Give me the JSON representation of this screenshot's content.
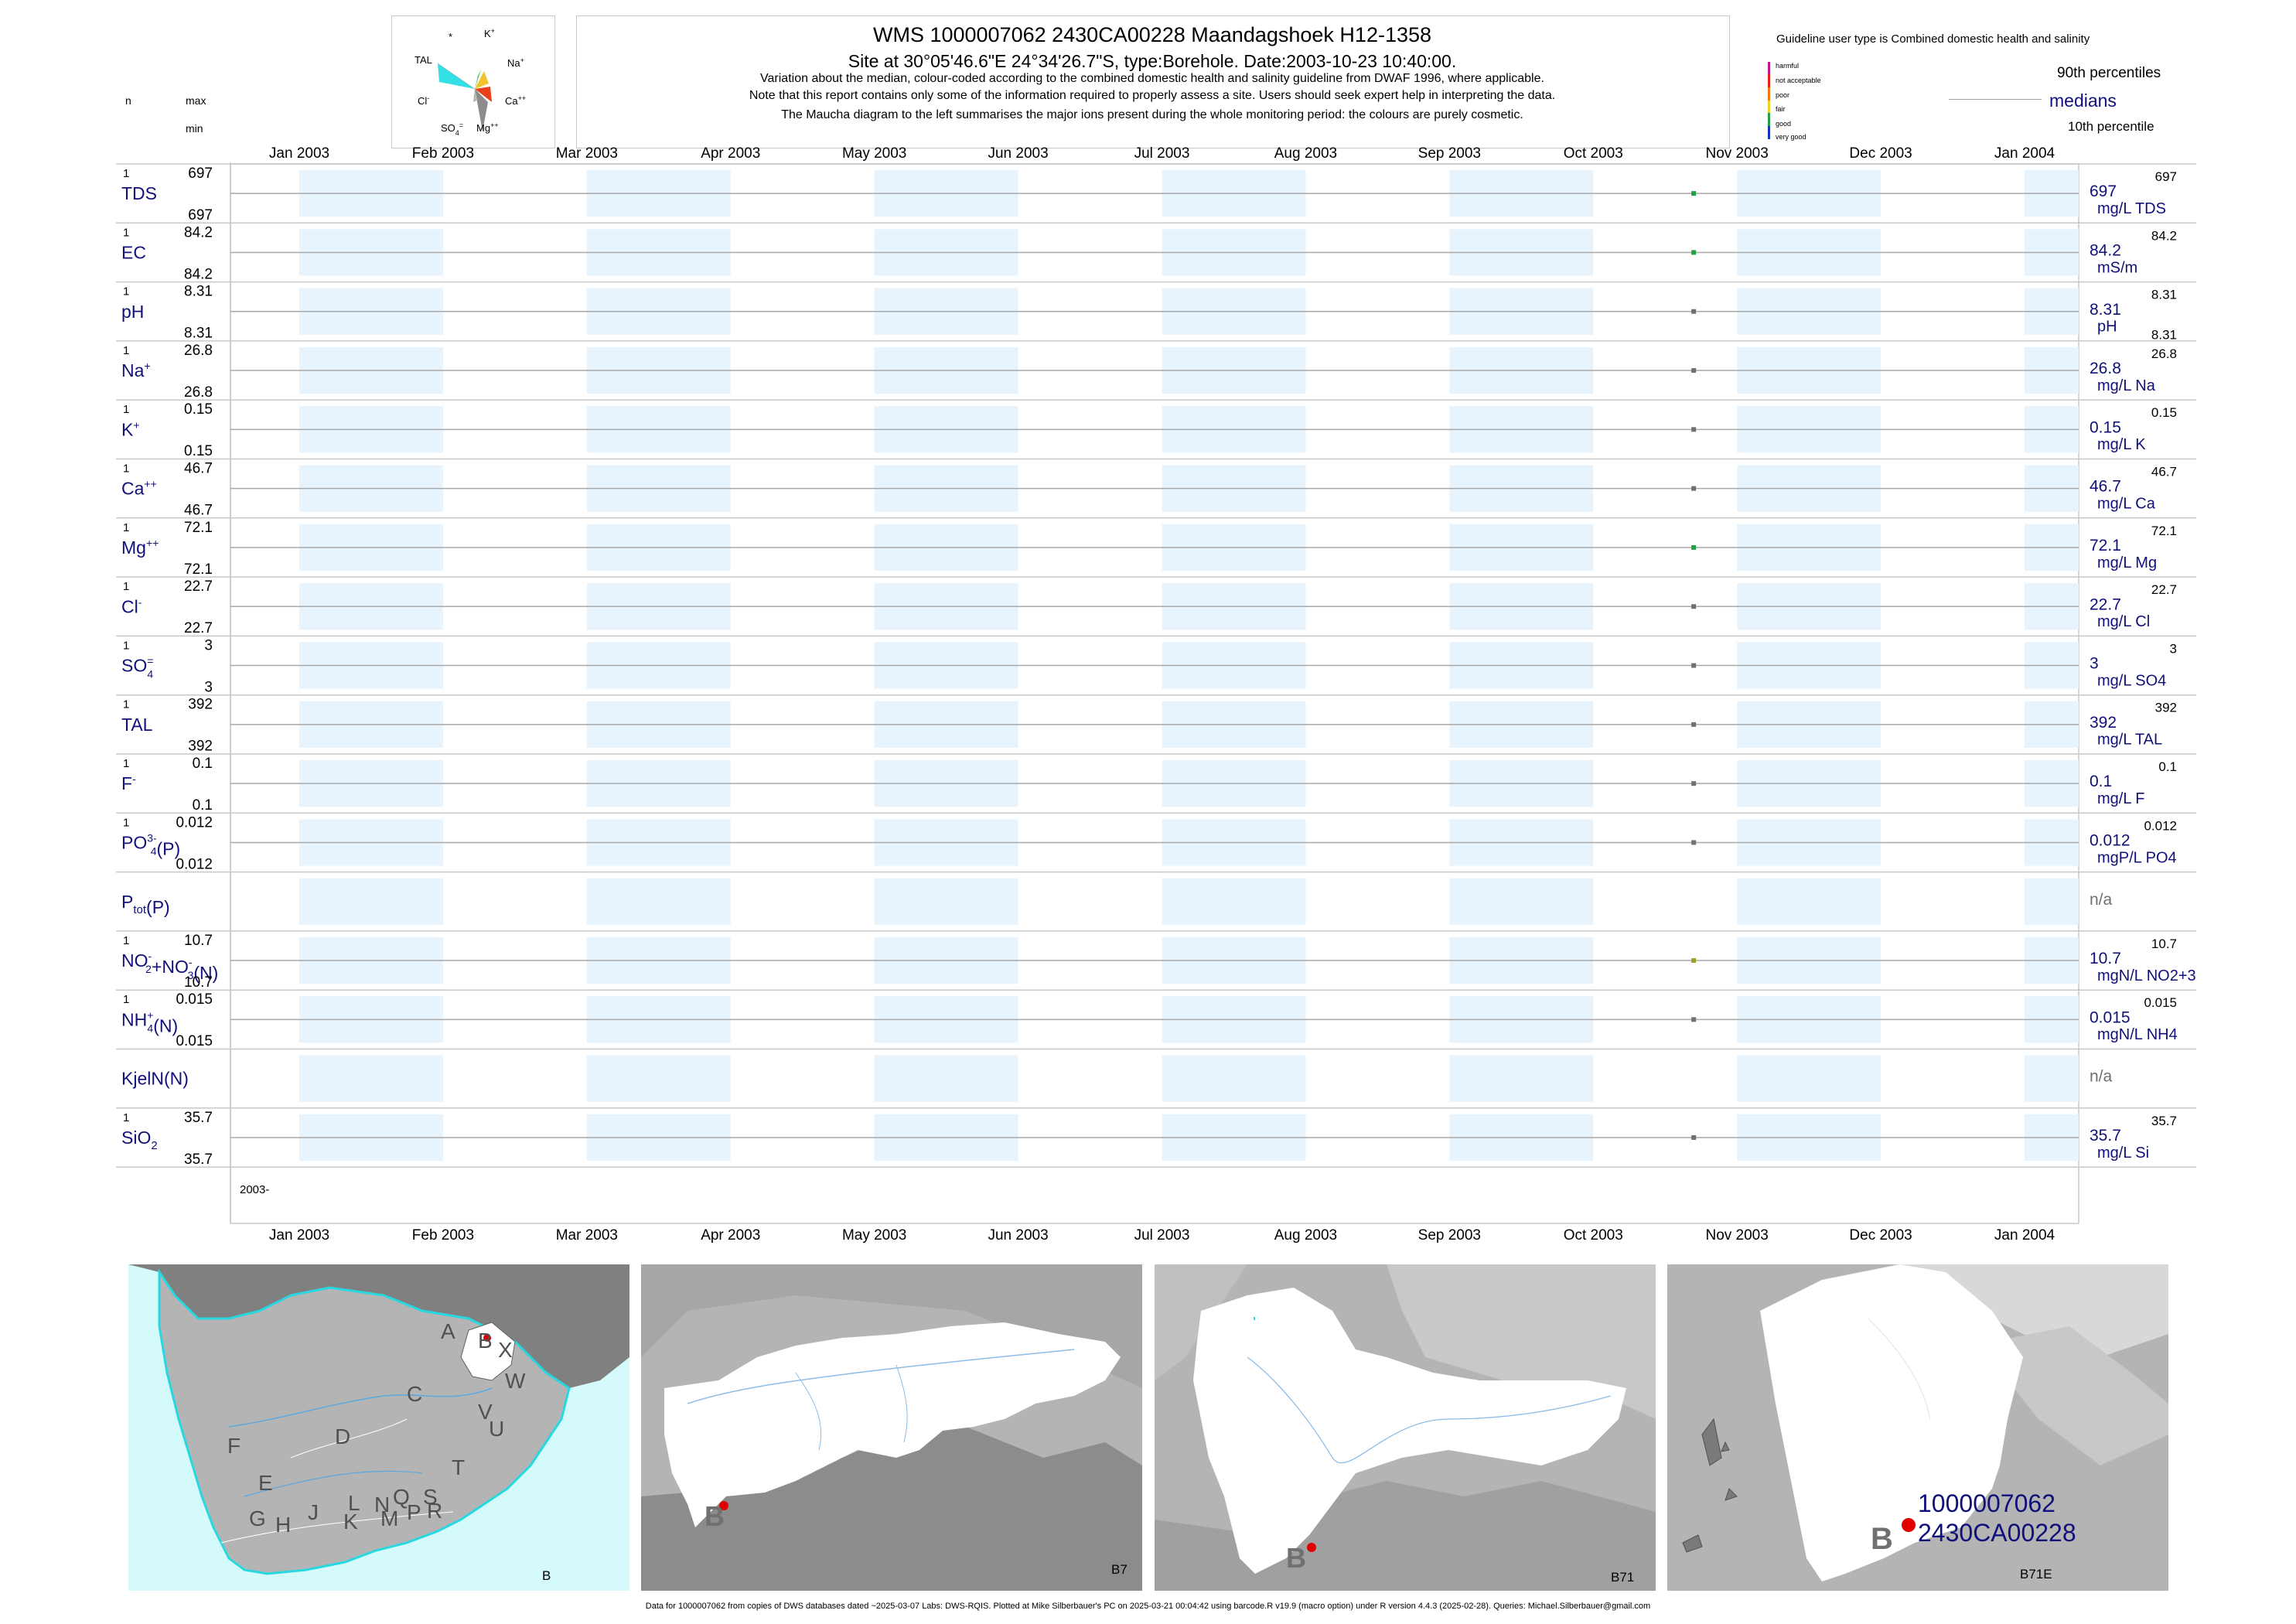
{
  "header": {
    "title": "WMS 1000007062 2430CA00228 Maandagshoek H12-1358",
    "subtitle": "Site at 30°05'46.6\"E 24°34'26.7\"S, type:Borehole. Date:2003-10-23 10:40:00.",
    "note1": "Variation about the median,  colour-coded according to the combined domestic health and salinity guideline from DWAF 1996, where applicable.",
    "note2": "Note that this report contains only some of the information required to properly assess a site. Users should seek expert help in interpreting the data.",
    "note3": "The Maucha diagram to the left summarises the major ions present during the whole monitoring period: the colours are purely cosmetic."
  },
  "maucha": {
    "labels": [
      "*",
      "K+",
      "Na+",
      "Ca++",
      "Mg++",
      "SO4=",
      "Cl-",
      "TAL"
    ],
    "colors": {
      "tal": "#33e0e6",
      "na": "#f2c230",
      "ca": "#e8401c",
      "mg": "#8c8c8c",
      "k": "#40c040",
      "cl": "#ffffff",
      "so4": "#b0b0b0"
    }
  },
  "left_header": {
    "n": "n",
    "max": "max",
    "min": "min"
  },
  "legend": {
    "guideline_title": "Guideline user type is Combined domestic health and salinity",
    "classes": [
      {
        "label": "harmful",
        "color": "#c0188c"
      },
      {
        "label": "not acceptable",
        "color": "#e8201c"
      },
      {
        "label": "poor",
        "color": "#f07818"
      },
      {
        "label": "fair",
        "color": "#f0d020"
      },
      {
        "label": "good",
        "color": "#20a040"
      },
      {
        "label": "very good",
        "color": "#1830c0"
      }
    ],
    "p90": "90th percentiles",
    "medians": "medians",
    "p10": "10th percentile"
  },
  "months": [
    "Jan 2003",
    "Feb 2003",
    "Mar 2003",
    "Apr 2003",
    "May 2003",
    "Jun 2003",
    "Jul 2003",
    "Aug 2003",
    "Sep 2003",
    "Oct 2003",
    "Nov 2003",
    "Dec 2003",
    "Jan 2004"
  ],
  "year_label": "2003-",
  "chart_data": {
    "type": "scatter",
    "title": "WMS 1000007062 2430CA00228 Maandagshoek H12-1358",
    "x_range": [
      "2003-01-01",
      "2004-01-01"
    ],
    "sample_date": "2003-10-23",
    "series": [
      {
        "label": "TDS",
        "n": "1",
        "max": "697",
        "min": "697",
        "median": "697",
        "p90": "697",
        "p10": "",
        "unit": "mg/L TDS",
        "color": "#20a040",
        "value": 697
      },
      {
        "label": "EC",
        "n": "1",
        "max": "84.2",
        "min": "84.2",
        "median": "84.2",
        "p90": "84.2",
        "p10": "",
        "unit": "mS/m",
        "color": "#20a040",
        "value": 84.2
      },
      {
        "label": "pH",
        "n": "1",
        "max": "8.31",
        "min": "8.31",
        "median": "8.31",
        "p90": "8.31",
        "p10": "8.31",
        "unit": "pH",
        "color": "#707070",
        "value": 8.31
      },
      {
        "label": "Na",
        "sup": "+",
        "n": "1",
        "max": "26.8",
        "min": "26.8",
        "median": "26.8",
        "p90": "26.8",
        "p10": "",
        "unit": "mg/L Na",
        "color": "#707070",
        "value": 26.8
      },
      {
        "label": "K",
        "sup": "+",
        "n": "1",
        "max": "0.15",
        "min": "0.15",
        "median": "0.15",
        "p90": "0.15",
        "p10": "",
        "unit": "mg/L K",
        "color": "#707070",
        "value": 0.15
      },
      {
        "label": "Ca",
        "sup": "++",
        "n": "1",
        "max": "46.7",
        "min": "46.7",
        "median": "46.7",
        "p90": "46.7",
        "p10": "",
        "unit": "mg/L Ca",
        "color": "#707070",
        "value": 46.7
      },
      {
        "label": "Mg",
        "sup": "++",
        "n": "1",
        "max": "72.1",
        "min": "72.1",
        "median": "72.1",
        "p90": "72.1",
        "p10": "",
        "unit": "mg/L Mg",
        "color": "#20a040",
        "value": 72.1
      },
      {
        "label": "Cl",
        "sup": "-",
        "n": "1",
        "max": "22.7",
        "min": "22.7",
        "median": "22.7",
        "p90": "22.7",
        "p10": "",
        "unit": "mg/L Cl",
        "color": "#707070",
        "value": 22.7
      },
      {
        "label": "SO",
        "sup": "=",
        "sub": "4",
        "n": "1",
        "max": "3",
        "min": "3",
        "median": "3",
        "p90": "3",
        "p10": "",
        "unit": "mg/L SO4",
        "color": "#707070",
        "value": 3
      },
      {
        "label": "TAL",
        "n": "1",
        "max": "392",
        "min": "392",
        "median": "392",
        "p90": "392",
        "p10": "",
        "unit": "mg/L TAL",
        "color": "#707070",
        "value": 392
      },
      {
        "label": "F",
        "sup": "-",
        "n": "1",
        "max": "0.1",
        "min": "0.1",
        "median": "0.1",
        "p90": "0.1",
        "p10": "",
        "unit": "mg/L F",
        "color": "#707070",
        "value": 0.1
      },
      {
        "label": "PO",
        "sup": "3-",
        "sub": "4",
        "suffix": "(P)",
        "n": "1",
        "max": "0.012",
        "min": "0.012",
        "median": "0.012",
        "p90": "0.012",
        "p10": "",
        "unit": "mgP/L PO4",
        "color": "#707070",
        "value": 0.012
      },
      {
        "label": "P",
        "sub": "tot",
        "suffix": "(P)",
        "n": "",
        "max": "",
        "min": "",
        "median": "n/a",
        "p90": "",
        "p10": "",
        "unit": "",
        "color": "",
        "value": null
      },
      {
        "label": "NO",
        "sup": "-",
        "sub": "2",
        "suffix": "+NO",
        "sup2": "-",
        "sub2": "3",
        "suffix2": "(N)",
        "n": "1",
        "max": "10.7",
        "min": "10.7",
        "median": "10.7",
        "p90": "10.7",
        "p10": "",
        "unit": "mgN/L NO2+3",
        "color": "#a0a020",
        "value": 10.7
      },
      {
        "label": "NH",
        "sup": "+",
        "sub": "4",
        "suffix": "(N)",
        "n": "1",
        "max": "0.015",
        "min": "0.015",
        "median": "0.015",
        "p90": "0.015",
        "p10": "",
        "unit": "mgN/L NH4",
        "color": "#707070",
        "value": 0.015
      },
      {
        "label": "KjelN(N)",
        "n": "",
        "max": "",
        "min": "",
        "median": "n/a",
        "p90": "",
        "p10": "",
        "unit": "",
        "color": "",
        "value": null
      },
      {
        "label": "SiO",
        "sub": "2",
        "n": "1",
        "max": "35.7",
        "min": "35.7",
        "median": "35.7",
        "p90": "35.7",
        "p10": "",
        "unit": "mg/L Si",
        "color": "#707070",
        "value": 35.7
      }
    ]
  },
  "maps": {
    "map1": {
      "letters": [
        "A",
        "B",
        "X",
        "W",
        "C",
        "V",
        "U",
        "D",
        "T",
        "F",
        "E",
        "G",
        "H",
        "J",
        "K",
        "L",
        "N",
        "M",
        "Q",
        "P",
        "S",
        "R"
      ],
      "caption": "B",
      "sea_color": "#d4fafc",
      "land_color": "#b4b4b4",
      "neighbour_color": "#808080"
    },
    "map2": {
      "marker_letter": "B",
      "caption": "B7"
    },
    "map3": {
      "marker_letter": "B",
      "caption": "B71"
    },
    "map4": {
      "marker_letter": "B",
      "site_id": "1000007062",
      "site_code": "2430CA00228",
      "caption": "B71E"
    }
  },
  "footer": "Data for 1000007062 from copies of DWS databases dated ~2025-03-07 Labs: DWS-RQIS. Plotted at Mike Silberbauer's PC on 2025-03-21 00:04:42 using barcode.R v19.9 (macro option) under R version 4.4.3 (2025-02-28). Queries: Michael.Silberbauer@gmail.com"
}
